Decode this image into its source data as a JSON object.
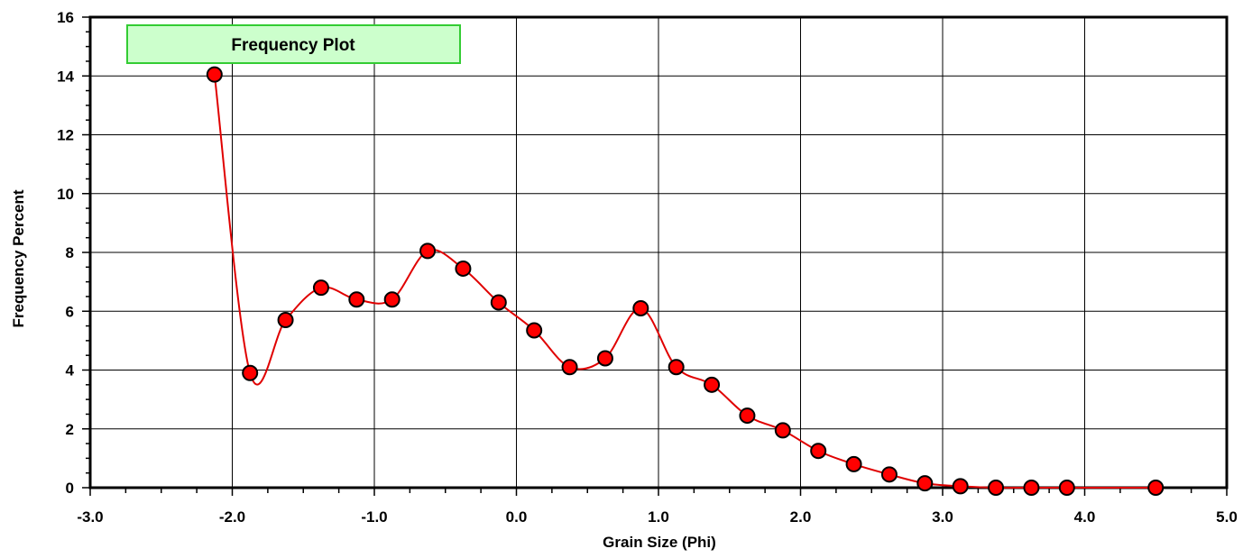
{
  "chart_data": {
    "type": "line",
    "title": "Frequency Plot",
    "xlabel": "Grain Size (Phi)",
    "ylabel": "Frequency Percent",
    "xlim": [
      -3.0,
      5.0
    ],
    "ylim": [
      0,
      16
    ],
    "x_ticks": [
      "-3.0",
      "-2.0",
      "-1.0",
      "0.0",
      "1.0",
      "2.0",
      "3.0",
      "4.0",
      "5.0"
    ],
    "y_ticks": [
      "0",
      "2",
      "4",
      "6",
      "8",
      "10",
      "12",
      "14",
      "16"
    ],
    "grid": true,
    "smooth_line": true,
    "line_color": "#e00000",
    "marker_color": "#ff0000",
    "marker_edge_color": "#000000",
    "title_box_color": "#ccffcc",
    "title_box_border_color": "#33cc33",
    "series": [
      {
        "x": [
          -2.125,
          -1.875,
          -1.625,
          -1.375,
          -1.125,
          -0.875,
          -0.625,
          -0.375,
          -0.125,
          0.125,
          0.375,
          0.625,
          0.875,
          1.125,
          1.375,
          1.625,
          1.875,
          2.125,
          2.375,
          2.625,
          2.875,
          3.125,
          3.375,
          3.625,
          3.875,
          4.5
        ],
        "y": [
          14.05,
          3.9,
          5.7,
          6.8,
          6.4,
          6.4,
          8.05,
          7.45,
          6.3,
          5.35,
          4.1,
          4.4,
          6.1,
          4.1,
          3.5,
          2.45,
          1.95,
          1.25,
          0.8,
          0.45,
          0.15,
          0.05,
          0.0,
          0.0,
          0.0,
          0.0
        ]
      }
    ]
  }
}
